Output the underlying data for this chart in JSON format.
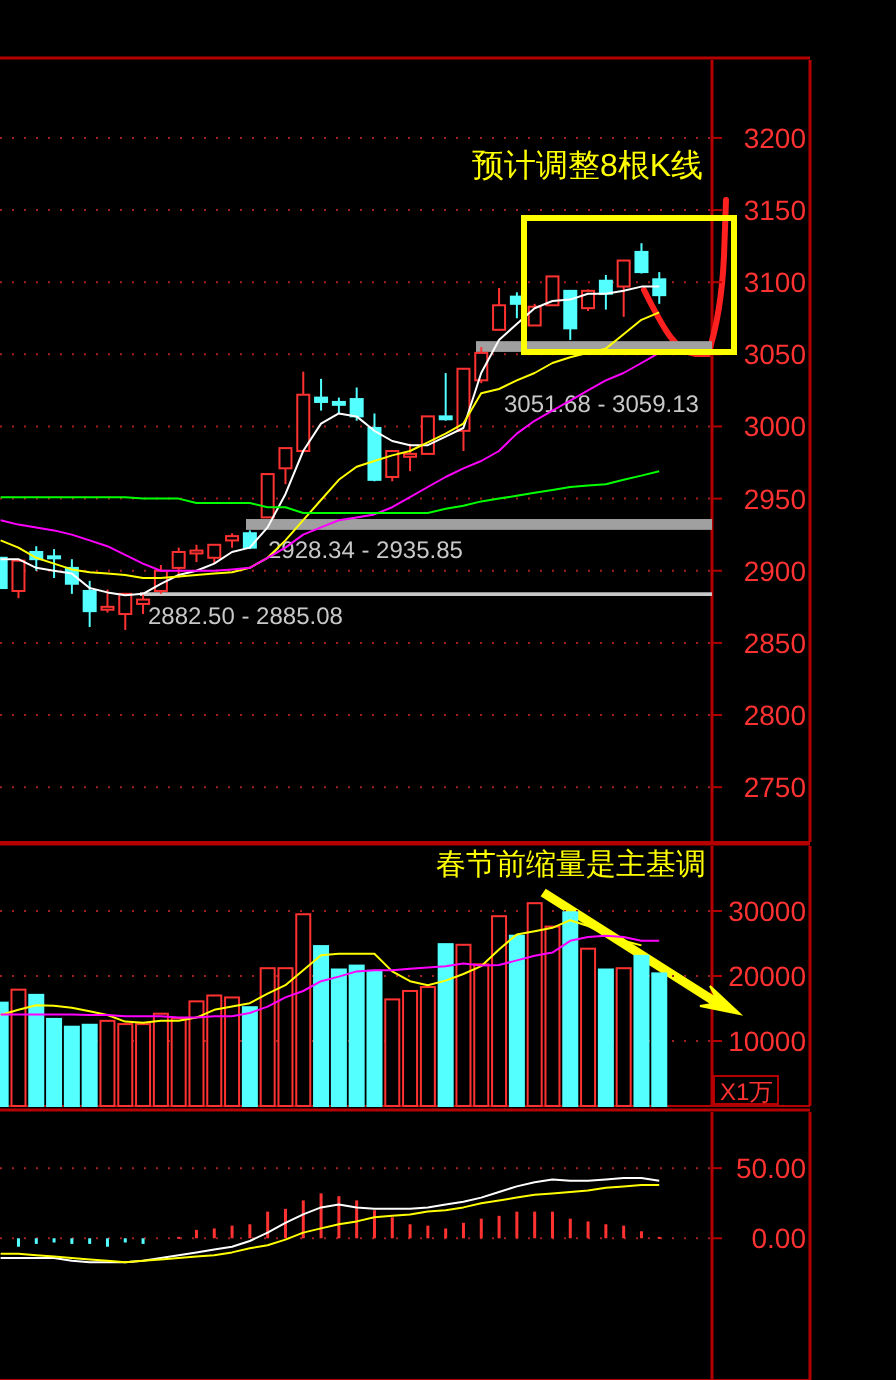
{
  "chart_data": [
    {
      "type": "candlestick",
      "categories": [
        null,
        null,
        null,
        null,
        null,
        null,
        null,
        null,
        null,
        null,
        null,
        null,
        null,
        null,
        null,
        null,
        null,
        null,
        null,
        null,
        null,
        null,
        null,
        null,
        null,
        null,
        null,
        null,
        null,
        null,
        null,
        null,
        null,
        null,
        null,
        null,
        null,
        null
      ],
      "ohlc": [
        [
          2909,
          2909,
          2888,
          2888
        ],
        [
          2886,
          2907,
          2881,
          2907
        ],
        [
          2913,
          2917,
          2900,
          2908
        ],
        [
          2910,
          2915,
          2895,
          2909
        ],
        [
          2902,
          2908,
          2884,
          2891
        ],
        [
          2886,
          2893,
          2861,
          2872
        ],
        [
          2873,
          2887,
          2871,
          2875
        ],
        [
          2870,
          2884,
          2859,
          2884
        ],
        [
          2877,
          2884,
          2870,
          2880
        ],
        [
          2886,
          2904,
          2884,
          2900
        ],
        [
          2902,
          2916,
          2895,
          2913
        ],
        [
          2912,
          2918,
          2906,
          2914
        ],
        [
          2909,
          2918,
          2905,
          2918
        ],
        [
          2921,
          2926,
          2916,
          2924
        ],
        [
          2926,
          2928,
          2915,
          2916
        ],
        [
          2937,
          2967,
          2937,
          2967
        ],
        [
          2971,
          2985,
          2960,
          2985
        ],
        [
          2983,
          3038,
          2983,
          3022
        ],
        [
          3020,
          3033,
          3011,
          3017
        ],
        [
          3017,
          3020,
          3009,
          3015
        ],
        [
          3019,
          3027,
          3004,
          3007
        ],
        [
          2999,
          3009,
          2962,
          2963
        ],
        [
          2965,
          2983,
          2962,
          2983
        ],
        [
          2979,
          2988,
          2969,
          2981
        ],
        [
          2981,
          3007,
          2981,
          3007
        ],
        [
          3007,
          3037,
          3004,
          3005
        ],
        [
          2997,
          3040,
          2983,
          3040
        ],
        [
          3032,
          3055,
          3030,
          3051
        ],
        [
          3067,
          3096,
          3067,
          3084
        ],
        [
          3090,
          3093,
          3075,
          3085
        ],
        [
          3070,
          3085,
          3070,
          3083
        ],
        [
          3084,
          3104,
          3084,
          3104
        ],
        [
          3094,
          3094,
          3060,
          3068
        ],
        [
          3082,
          3095,
          3080,
          3094
        ],
        [
          3101,
          3105,
          3081,
          3092
        ],
        [
          3097,
          3115,
          3076,
          3115
        ],
        [
          3121,
          3127,
          3106,
          3107
        ],
        [
          3102,
          3107,
          3085,
          3091
        ]
      ],
      "colors": [
        "#54ffff",
        "#ff3232",
        "#54ffff",
        "#54ffff",
        "#54ffff",
        "#54ffff",
        "#ff3232",
        "#ff3232",
        "#ff3232",
        "#ff3232",
        "#ff3232",
        "#ff3232",
        "#ff3232",
        "#ff3232",
        "#54ffff",
        "#ff3232",
        "#ff3232",
        "#ff3232",
        "#54ffff",
        "#54ffff",
        "#54ffff",
        "#54ffff",
        "#ff3232",
        "#ff3232",
        "#ff3232",
        "#54ffff",
        "#ff3232",
        "#ff3232",
        "#ff3232",
        "#54ffff",
        "#ff3232",
        "#ff3232",
        "#54ffff",
        "#ff3232",
        "#54ffff",
        "#ff3232",
        "#54ffff",
        "#54ffff"
      ],
      "series": [
        {
          "type": "line",
          "color": "#ffffff",
          "values": [
            2908,
            2908,
            2902,
            2900,
            2898,
            2888,
            2885,
            2883,
            2884,
            2891,
            2897,
            2900,
            2905,
            2913,
            2916,
            2930,
            2953,
            2983,
            3002,
            3009,
            3007,
            2997,
            2990,
            2987,
            2987,
            2993,
            2999,
            3037,
            3060,
            3071,
            3082,
            3087,
            3088,
            3092,
            3092,
            3094,
            3097,
            3097
          ]
        },
        {
          "type": "line",
          "color": "#ffff00",
          "values": [
            2921,
            2916,
            2909,
            2905,
            2901,
            2899,
            2898,
            2897,
            2895,
            2895,
            2896,
            2897,
            2898,
            2899,
            2902,
            2909,
            2921,
            2935,
            2949,
            2963,
            2972,
            2976,
            2980,
            2983,
            2989,
            2995,
            3002,
            3023,
            3026,
            3032,
            3037,
            3044,
            3048,
            3051,
            3054,
            3064,
            3074,
            3079
          ]
        },
        {
          "type": "line",
          "color": "#ff00ff",
          "values": [
            2935,
            2932,
            2930,
            2928,
            2925,
            2921,
            2917,
            2911,
            2905,
            2900,
            2900,
            2900,
            2900,
            2901,
            2902,
            2909,
            2916,
            2925,
            2930,
            2935,
            2937,
            2939,
            2944,
            2951,
            2958,
            2965,
            2971,
            2976,
            2983,
            2995,
            3004,
            3011,
            3018,
            3025,
            3032,
            3037,
            3044,
            3051
          ]
        },
        {
          "type": "line",
          "color": "#00ff00",
          "values": [
            2951,
            2951,
            2951,
            2951,
            2951,
            2951,
            2951,
            2951,
            2950,
            2950,
            2950,
            2947,
            2947,
            2947,
            2947,
            2944,
            2944,
            2940,
            2940,
            2940,
            2940,
            2940,
            2940,
            2940,
            2940,
            2943,
            2945,
            2948,
            2950,
            2952,
            2954,
            2956,
            2958,
            2959,
            2960,
            2963,
            2966,
            2969
          ]
        }
      ],
      "ylim": [
        2712,
        3254
      ],
      "yticks": [
        2750,
        2800,
        2850,
        2900,
        2950,
        3000,
        3050,
        3100,
        3150,
        3200
      ],
      "grid": "y",
      "bands": [
        {
          "axis": "y",
          "from": 2928.34,
          "to": 2935.85,
          "label": "2928.34 - 2935.85",
          "color": "#a0a0a0"
        },
        {
          "axis": "y",
          "from": 3051.68,
          "to": 3059.13,
          "label": "3051.68 - 3059.13",
          "color": "#a0a0a0"
        },
        {
          "axis": "y",
          "from": 2882.5,
          "to": 2885.08,
          "label": "2882.50 - 2885.08",
          "color": "#c8c8c8"
        }
      ],
      "annotations": [
        "预计调整8根K线"
      ]
    },
    {
      "type": "bar",
      "categories": [
        null,
        null,
        null,
        null,
        null,
        null,
        null,
        null,
        null,
        null,
        null,
        null,
        null,
        null,
        null,
        null,
        null,
        null,
        null,
        null,
        null,
        null,
        null,
        null,
        null,
        null,
        null,
        null,
        null,
        null,
        null,
        null,
        null,
        null,
        null,
        null,
        null,
        null
      ],
      "values": [
        15900,
        17900,
        17100,
        13400,
        12200,
        12500,
        13100,
        12600,
        12600,
        14200,
        13500,
        16100,
        17000,
        16700,
        15200,
        21200,
        21200,
        29500,
        24600,
        21000,
        21600,
        20800,
        16400,
        17700,
        18300,
        24900,
        24800,
        21800,
        29200,
        26200,
        31200,
        27600,
        29800,
        24200,
        21000,
        21200,
        23100,
        20400
      ],
      "colors": [
        "#54ffff",
        "#ff3232",
        "#54ffff",
        "#54ffff",
        "#54ffff",
        "#54ffff",
        "#ff3232",
        "#ff3232",
        "#ff3232",
        "#ff3232",
        "#ff3232",
        "#ff3232",
        "#ff3232",
        "#ff3232",
        "#54ffff",
        "#ff3232",
        "#ff3232",
        "#ff3232",
        "#54ffff",
        "#54ffff",
        "#54ffff",
        "#54ffff",
        "#ff3232",
        "#ff3232",
        "#ff3232",
        "#54ffff",
        "#ff3232",
        "#ff3232",
        "#ff3232",
        "#54ffff",
        "#ff3232",
        "#ff3232",
        "#54ffff",
        "#ff3232",
        "#54ffff",
        "#ff3232",
        "#54ffff",
        "#54ffff"
      ],
      "series": [
        {
          "type": "line",
          "color": "#ffff00",
          "values": [
            14000,
            14800,
            15500,
            15400,
            15100,
            14600,
            14000,
            13000,
            12800,
            13100,
            13100,
            13600,
            14800,
            15300,
            15800,
            17300,
            18600,
            20900,
            23200,
            23400,
            23400,
            23400,
            20700,
            19200,
            18600,
            19300,
            20300,
            21500,
            24100,
            26400,
            26900,
            27400,
            28600,
            27700,
            26400,
            25400,
            24700,
            null
          ]
        },
        {
          "type": "line",
          "color": "#ff00ff",
          "values": [
            14100,
            14100,
            14100,
            14100,
            14100,
            14000,
            14000,
            13800,
            13800,
            13800,
            13600,
            13600,
            13800,
            13800,
            14300,
            15300,
            16700,
            17700,
            19200,
            19900,
            20700,
            20900,
            20900,
            21100,
            21300,
            21500,
            21900,
            21600,
            21700,
            22400,
            23100,
            23600,
            25400,
            26000,
            26200,
            26000,
            25400,
            25400
          ]
        }
      ],
      "ylim": [
        0,
        40000
      ],
      "yticks": [
        10000,
        20000,
        30000
      ],
      "ylabel": "X1万",
      "grid": "y",
      "annotations": [
        "春节前缩量是主基调"
      ]
    },
    {
      "type": "bar",
      "categories": [
        null,
        null,
        null,
        null,
        null,
        null,
        null,
        null,
        null,
        null,
        null,
        null,
        null,
        null,
        null,
        null,
        null,
        null,
        null,
        null,
        null,
        null,
        null,
        null,
        null,
        null,
        null,
        null,
        null,
        null,
        null,
        null,
        null,
        null,
        null,
        null,
        null,
        null
      ],
      "values": [
        null,
        -6,
        -4,
        -3,
        -4,
        -4,
        -6,
        -3,
        -4,
        null,
        1,
        6,
        7,
        9,
        10,
        19,
        21,
        27,
        32,
        30,
        27,
        20,
        15,
        10,
        9,
        7,
        11,
        14,
        16,
        19,
        19,
        19,
        14,
        12,
        10,
        9,
        5,
        1
      ],
      "colors": [
        "#54ffff",
        "#54ffff",
        "#54ffff",
        "#54ffff",
        "#54ffff",
        "#54ffff",
        "#54ffff",
        "#54ffff",
        "#54ffff",
        "#ff3232",
        "#ff3232",
        "#ff3232",
        "#ff3232",
        "#ff3232",
        "#ff3232",
        "#ff3232",
        "#ff3232",
        "#ff3232",
        "#ff3232",
        "#ff3232",
        "#ff3232",
        "#ff3232",
        "#ff3232",
        "#ff3232",
        "#ff3232",
        "#ff3232",
        "#ff3232",
        "#ff3232",
        "#ff3232",
        "#ff3232",
        "#ff3232",
        "#ff3232",
        "#ff3232",
        "#ff3232",
        "#ff3232",
        "#ff3232",
        "#ff3232",
        "#ff3232"
      ],
      "series": [
        {
          "type": "line",
          "color": "#ffffff",
          "values": [
            -14,
            -14,
            -14,
            -14,
            -16,
            -17,
            -17,
            -17,
            -16,
            -14,
            -12,
            -10,
            -8,
            -6,
            -2,
            4,
            11,
            17,
            22,
            24,
            22,
            21,
            21,
            21,
            22,
            24,
            26,
            29,
            33,
            37,
            40,
            42,
            41,
            41,
            42,
            43,
            43,
            41
          ]
        },
        {
          "type": "line",
          "color": "#ffff00",
          "values": [
            -11,
            -11,
            -12,
            -13,
            -14,
            -15,
            -16,
            -17,
            -16,
            -15,
            -14,
            -13,
            -12,
            -10,
            -7,
            -5,
            -1,
            4,
            7,
            10,
            12,
            15,
            16,
            17,
            19,
            20,
            22,
            25,
            27,
            29,
            31,
            32,
            33,
            34,
            36,
            37,
            38,
            38
          ]
        }
      ],
      "ylim": [
        -101,
        90
      ],
      "yticks": [
        {
          "value": 0,
          "label": "0.00"
        },
        {
          "value": 50,
          "label": "50.00"
        }
      ],
      "grid": "y"
    }
  ]
}
